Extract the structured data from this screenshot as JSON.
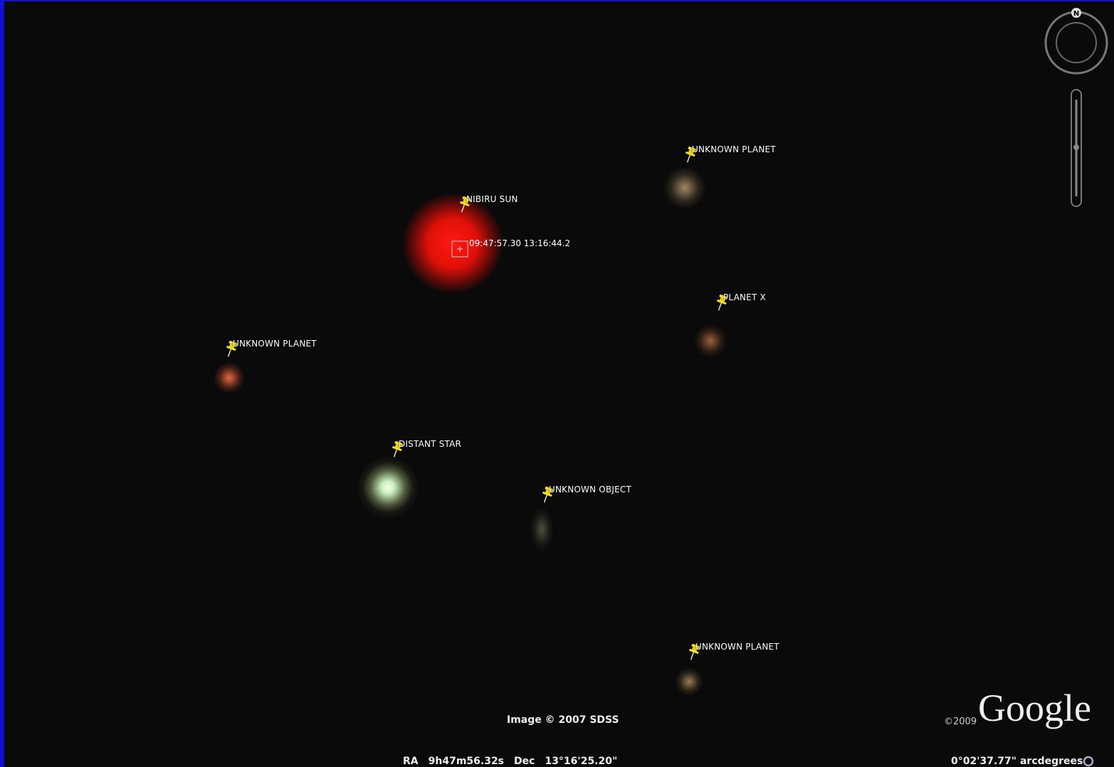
{
  "placemarks": [
    {
      "label": "UNKNOWN PLANET"
    },
    {
      "label": "NIBIRU SUN"
    },
    {
      "label": "PLANET X"
    },
    {
      "label": "UNKNOWN PLANET"
    },
    {
      "label": "DISTANT STAR"
    },
    {
      "label": "UNKNOWN OBJECT"
    },
    {
      "label": "UNKNOWN PLANET"
    }
  ],
  "crosshair_label": "09:47:57.30 13:16:44.2",
  "image_credit": "Image © 2007 SDSS",
  "status_bar": {
    "ra_label": "RA",
    "ra": "9h47m56.32s",
    "dec_label": "Dec",
    "dec": "13°16'25.20\""
  },
  "scale": "0°02'37.77\" arcdegrees",
  "logo": {
    "year": "©2009",
    "name": "Google"
  },
  "compass": "N"
}
